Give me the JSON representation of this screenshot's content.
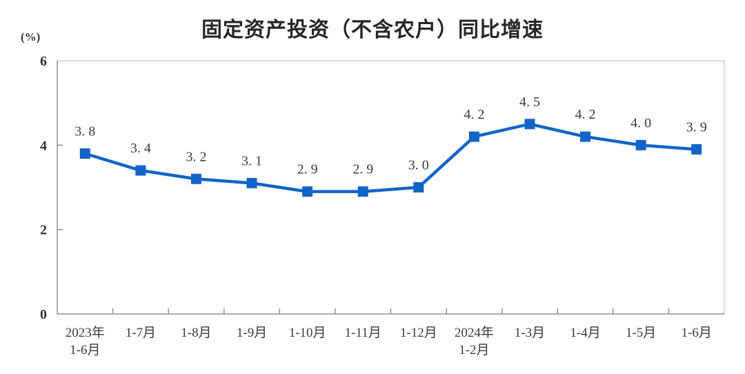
{
  "chart_data": {
    "type": "line",
    "title": "固定资产投资（不含农户）同比增速",
    "ylabel": "(%)",
    "xlabel": "",
    "categories": [
      "2023年\n1-6月",
      "1-7月",
      "1-8月",
      "1-9月",
      "1-10月",
      "1-11月",
      "1-12月",
      "2024年\n1-2月",
      "1-3月",
      "1-4月",
      "1-5月",
      "1-6月"
    ],
    "values": [
      3.8,
      3.4,
      3.2,
      3.1,
      2.9,
      2.9,
      3.0,
      4.2,
      4.5,
      4.2,
      4.0,
      3.9
    ],
    "value_labels": [
      "3. 8",
      "3. 4",
      "3. 2",
      "3. 1",
      "2. 9",
      "2. 9",
      "3. 0",
      "4. 2",
      "4. 5",
      "4. 2",
      "4. 0",
      "3. 9"
    ],
    "ylim": [
      0,
      6
    ],
    "y_ticks": [
      0,
      2,
      4,
      6
    ],
    "grid": false,
    "legend": null,
    "colors": {
      "line": "#1464C8",
      "marker": "#1464C8",
      "axis": "#8f8f8f",
      "frame_light": "#c6c6c6",
      "tick_label": "#333333",
      "data_label": "#3a3a3a",
      "category_label": "#3a3a3a"
    }
  }
}
